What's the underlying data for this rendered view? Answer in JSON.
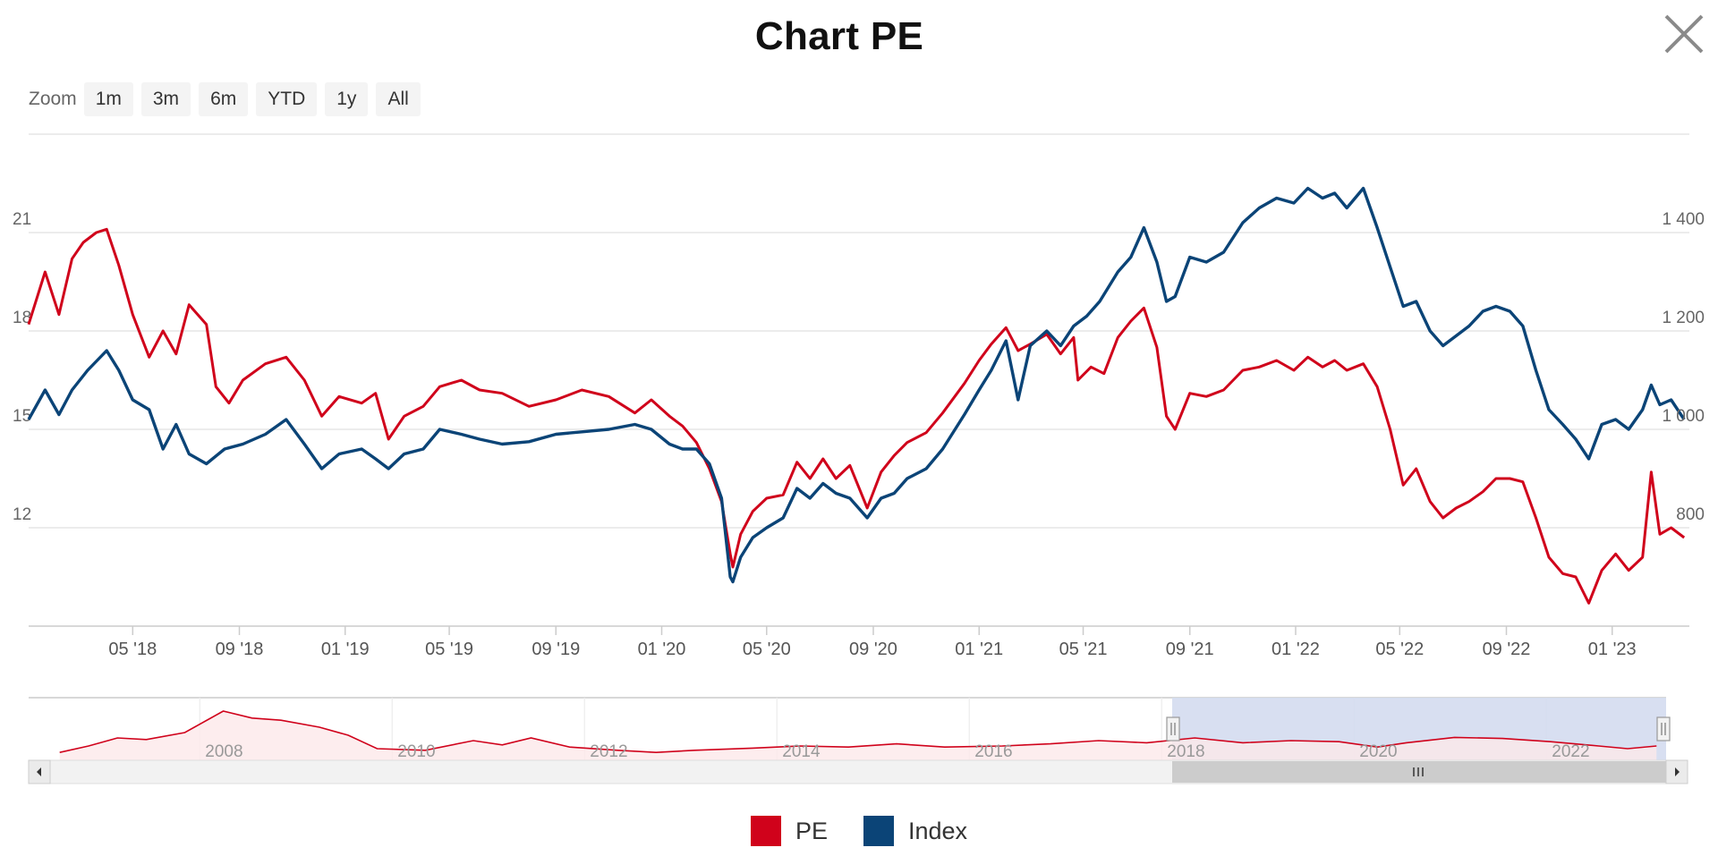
{
  "title": "Chart PE",
  "zoom": {
    "label": "Zoom",
    "buttons": [
      "1m",
      "3m",
      "6m",
      "YTD",
      "1y",
      "All"
    ]
  },
  "colors": {
    "pe": "#d0021b",
    "index": "#0b4477",
    "navigator_band": "#d4dcef"
  },
  "legend": [
    {
      "name": "PE",
      "color": "#d0021b"
    },
    {
      "name": "Index",
      "color": "#0b4477"
    }
  ],
  "navigator": {
    "x_tick_labels": [
      "2008",
      "2010",
      "2012",
      "2014",
      "2016",
      "2018",
      "2020",
      "2022"
    ]
  },
  "chart_data": {
    "type": "line",
    "x_tick_labels": [
      "05 '18",
      "09 '18",
      "01 '19",
      "05 '19",
      "09 '19",
      "01 '20",
      "05 '20",
      "09 '20",
      "01 '21",
      "05 '21",
      "09 '21",
      "01 '22",
      "05 '22",
      "09 '22",
      "01 '23"
    ],
    "y_left": {
      "ticks": [
        "12",
        "15",
        "18",
        "21"
      ],
      "range": [
        9,
        24
      ]
    },
    "y_right": {
      "ticks": [
        "800",
        "1 000",
        "1 200",
        "1 400"
      ],
      "range": [
        600,
        1600
      ]
    },
    "grid": true,
    "legend_position": "bottom-center",
    "series": [
      {
        "name": "PE",
        "axis": "left",
        "points": [
          [
            "2018-01-01",
            18.2
          ],
          [
            "2018-01-20",
            19.8
          ],
          [
            "2018-02-05",
            18.5
          ],
          [
            "2018-02-20",
            20.2
          ],
          [
            "2018-03-05",
            20.7
          ],
          [
            "2018-03-20",
            21.0
          ],
          [
            "2018-04-01",
            21.1
          ],
          [
            "2018-04-15",
            20.0
          ],
          [
            "2018-05-01",
            18.5
          ],
          [
            "2018-05-20",
            17.2
          ],
          [
            "2018-06-05",
            18.0
          ],
          [
            "2018-06-20",
            17.3
          ],
          [
            "2018-07-05",
            18.8
          ],
          [
            "2018-07-25",
            18.2
          ],
          [
            "2018-08-05",
            16.3
          ],
          [
            "2018-08-20",
            15.8
          ],
          [
            "2018-09-05",
            16.5
          ],
          [
            "2018-10-01",
            17.0
          ],
          [
            "2018-10-25",
            17.2
          ],
          [
            "2018-11-15",
            16.5
          ],
          [
            "2018-12-05",
            15.4
          ],
          [
            "2018-12-25",
            16.0
          ],
          [
            "2019-01-20",
            15.8
          ],
          [
            "2019-02-05",
            16.1
          ],
          [
            "2019-02-20",
            14.7
          ],
          [
            "2019-03-10",
            15.4
          ],
          [
            "2019-04-01",
            15.7
          ],
          [
            "2019-04-20",
            16.3
          ],
          [
            "2019-05-15",
            16.5
          ],
          [
            "2019-06-05",
            16.2
          ],
          [
            "2019-07-01",
            16.1
          ],
          [
            "2019-08-01",
            15.7
          ],
          [
            "2019-09-01",
            15.9
          ],
          [
            "2019-10-01",
            16.2
          ],
          [
            "2019-11-01",
            16.0
          ],
          [
            "2019-12-01",
            15.5
          ],
          [
            "2019-12-20",
            15.9
          ],
          [
            "2020-01-10",
            15.4
          ],
          [
            "2020-01-25",
            15.1
          ],
          [
            "2020-02-10",
            14.6
          ],
          [
            "2020-02-25",
            13.8
          ],
          [
            "2020-03-10",
            12.8
          ],
          [
            "2020-03-20",
            11.2
          ],
          [
            "2020-03-23",
            10.8
          ],
          [
            "2020-04-01",
            11.8
          ],
          [
            "2020-04-15",
            12.5
          ],
          [
            "2020-05-01",
            12.9
          ],
          [
            "2020-05-20",
            13.0
          ],
          [
            "2020-06-05",
            14.0
          ],
          [
            "2020-06-20",
            13.5
          ],
          [
            "2020-07-05",
            14.1
          ],
          [
            "2020-07-20",
            13.5
          ],
          [
            "2020-08-05",
            13.9
          ],
          [
            "2020-08-25",
            12.6
          ],
          [
            "2020-09-10",
            13.7
          ],
          [
            "2020-09-25",
            14.2
          ],
          [
            "2020-10-10",
            14.6
          ],
          [
            "2020-11-01",
            14.9
          ],
          [
            "2020-11-20",
            15.5
          ],
          [
            "2020-12-15",
            16.4
          ],
          [
            "2021-01-01",
            17.1
          ],
          [
            "2021-01-15",
            17.6
          ],
          [
            "2021-02-01",
            18.1
          ],
          [
            "2021-02-15",
            17.4
          ],
          [
            "2021-03-01",
            17.6
          ],
          [
            "2021-03-20",
            17.9
          ],
          [
            "2021-04-05",
            17.3
          ],
          [
            "2021-04-20",
            17.8
          ],
          [
            "2021-04-25",
            16.5
          ],
          [
            "2021-05-10",
            16.9
          ],
          [
            "2021-05-25",
            16.7
          ],
          [
            "2021-06-10",
            17.8
          ],
          [
            "2021-06-25",
            18.3
          ],
          [
            "2021-07-10",
            18.7
          ],
          [
            "2021-07-25",
            17.5
          ],
          [
            "2021-08-05",
            15.4
          ],
          [
            "2021-08-15",
            15.0
          ],
          [
            "2021-09-01",
            16.1
          ],
          [
            "2021-09-20",
            16.0
          ],
          [
            "2021-10-10",
            16.2
          ],
          [
            "2021-11-01",
            16.8
          ],
          [
            "2021-11-20",
            16.9
          ],
          [
            "2021-12-10",
            17.1
          ],
          [
            "2021-12-30",
            16.8
          ],
          [
            "2022-01-15",
            17.2
          ],
          [
            "2022-02-01",
            16.9
          ],
          [
            "2022-02-15",
            17.1
          ],
          [
            "2022-03-01",
            16.8
          ],
          [
            "2022-03-20",
            17.0
          ],
          [
            "2022-04-05",
            16.3
          ],
          [
            "2022-04-20",
            15.0
          ],
          [
            "2022-05-05",
            13.3
          ],
          [
            "2022-05-20",
            13.8
          ],
          [
            "2022-06-05",
            12.8
          ],
          [
            "2022-06-20",
            12.3
          ],
          [
            "2022-07-05",
            12.6
          ],
          [
            "2022-07-20",
            12.8
          ],
          [
            "2022-08-05",
            13.1
          ],
          [
            "2022-08-20",
            13.5
          ],
          [
            "2022-09-05",
            13.5
          ],
          [
            "2022-09-20",
            13.4
          ],
          [
            "2022-10-05",
            12.3
          ],
          [
            "2022-10-20",
            11.1
          ],
          [
            "2022-11-05",
            10.6
          ],
          [
            "2022-11-20",
            10.5
          ],
          [
            "2022-12-05",
            9.7
          ],
          [
            "2022-12-20",
            10.7
          ],
          [
            "2023-01-05",
            11.2
          ],
          [
            "2023-01-20",
            10.7
          ],
          [
            "2023-02-05",
            11.1
          ],
          [
            "2023-02-15",
            13.7
          ],
          [
            "2023-02-25",
            11.8
          ],
          [
            "2023-03-10",
            12.0
          ],
          [
            "2023-03-25",
            11.7
          ]
        ]
      },
      {
        "name": "Index",
        "axis": "right",
        "points": [
          [
            "2018-01-01",
            1020
          ],
          [
            "2018-01-20",
            1080
          ],
          [
            "2018-02-05",
            1030
          ],
          [
            "2018-02-20",
            1080
          ],
          [
            "2018-03-10",
            1120
          ],
          [
            "2018-04-01",
            1160
          ],
          [
            "2018-04-15",
            1120
          ],
          [
            "2018-05-01",
            1060
          ],
          [
            "2018-05-20",
            1040
          ],
          [
            "2018-06-05",
            960
          ],
          [
            "2018-06-20",
            1010
          ],
          [
            "2018-07-05",
            950
          ],
          [
            "2018-07-25",
            930
          ],
          [
            "2018-08-15",
            960
          ],
          [
            "2018-09-05",
            970
          ],
          [
            "2018-10-01",
            990
          ],
          [
            "2018-10-25",
            1020
          ],
          [
            "2018-11-15",
            970
          ],
          [
            "2018-12-05",
            920
          ],
          [
            "2018-12-25",
            950
          ],
          [
            "2019-01-20",
            960
          ],
          [
            "2019-02-05",
            940
          ],
          [
            "2019-02-20",
            920
          ],
          [
            "2019-03-10",
            950
          ],
          [
            "2019-04-01",
            960
          ],
          [
            "2019-04-20",
            1000
          ],
          [
            "2019-05-15",
            990
          ],
          [
            "2019-06-05",
            980
          ],
          [
            "2019-07-01",
            970
          ],
          [
            "2019-08-01",
            975
          ],
          [
            "2019-09-01",
            990
          ],
          [
            "2019-10-01",
            995
          ],
          [
            "2019-11-01",
            1000
          ],
          [
            "2019-12-01",
            1010
          ],
          [
            "2019-12-20",
            1000
          ],
          [
            "2020-01-10",
            970
          ],
          [
            "2020-01-25",
            960
          ],
          [
            "2020-02-10",
            960
          ],
          [
            "2020-02-25",
            930
          ],
          [
            "2020-03-10",
            860
          ],
          [
            "2020-03-20",
            700
          ],
          [
            "2020-03-23",
            690
          ],
          [
            "2020-04-01",
            740
          ],
          [
            "2020-04-15",
            780
          ],
          [
            "2020-05-01",
            800
          ],
          [
            "2020-05-20",
            820
          ],
          [
            "2020-06-05",
            880
          ],
          [
            "2020-06-20",
            860
          ],
          [
            "2020-07-05",
            890
          ],
          [
            "2020-07-20",
            870
          ],
          [
            "2020-08-05",
            860
          ],
          [
            "2020-08-25",
            820
          ],
          [
            "2020-09-10",
            860
          ],
          [
            "2020-09-25",
            870
          ],
          [
            "2020-10-10",
            900
          ],
          [
            "2020-11-01",
            920
          ],
          [
            "2020-11-20",
            960
          ],
          [
            "2020-12-15",
            1030
          ],
          [
            "2021-01-01",
            1080
          ],
          [
            "2021-01-15",
            1120
          ],
          [
            "2021-02-01",
            1180
          ],
          [
            "2021-02-15",
            1060
          ],
          [
            "2021-03-01",
            1170
          ],
          [
            "2021-03-20",
            1200
          ],
          [
            "2021-04-05",
            1170
          ],
          [
            "2021-04-20",
            1210
          ],
          [
            "2021-05-05",
            1230
          ],
          [
            "2021-05-20",
            1260
          ],
          [
            "2021-06-10",
            1320
          ],
          [
            "2021-06-25",
            1350
          ],
          [
            "2021-07-10",
            1410
          ],
          [
            "2021-07-25",
            1340
          ],
          [
            "2021-08-05",
            1260
          ],
          [
            "2021-08-15",
            1270
          ],
          [
            "2021-09-01",
            1350
          ],
          [
            "2021-09-20",
            1340
          ],
          [
            "2021-10-10",
            1360
          ],
          [
            "2021-11-01",
            1420
          ],
          [
            "2021-11-20",
            1450
          ],
          [
            "2021-12-10",
            1470
          ],
          [
            "2021-12-30",
            1460
          ],
          [
            "2022-01-15",
            1490
          ],
          [
            "2022-02-01",
            1470
          ],
          [
            "2022-02-15",
            1480
          ],
          [
            "2022-03-01",
            1450
          ],
          [
            "2022-03-20",
            1490
          ],
          [
            "2022-04-05",
            1410
          ],
          [
            "2022-04-20",
            1330
          ],
          [
            "2022-05-05",
            1250
          ],
          [
            "2022-05-20",
            1260
          ],
          [
            "2022-06-05",
            1200
          ],
          [
            "2022-06-20",
            1170
          ],
          [
            "2022-07-05",
            1190
          ],
          [
            "2022-07-20",
            1210
          ],
          [
            "2022-08-05",
            1240
          ],
          [
            "2022-08-20",
            1250
          ],
          [
            "2022-09-05",
            1240
          ],
          [
            "2022-09-20",
            1210
          ],
          [
            "2022-10-05",
            1120
          ],
          [
            "2022-10-20",
            1040
          ],
          [
            "2022-11-05",
            1010
          ],
          [
            "2022-11-20",
            980
          ],
          [
            "2022-12-05",
            940
          ],
          [
            "2022-12-20",
            1010
          ],
          [
            "2023-01-05",
            1020
          ],
          [
            "2023-01-20",
            1000
          ],
          [
            "2023-02-05",
            1040
          ],
          [
            "2023-02-15",
            1090
          ],
          [
            "2023-02-25",
            1050
          ],
          [
            "2023-03-10",
            1060
          ],
          [
            "2023-03-25",
            1020
          ]
        ]
      }
    ]
  }
}
